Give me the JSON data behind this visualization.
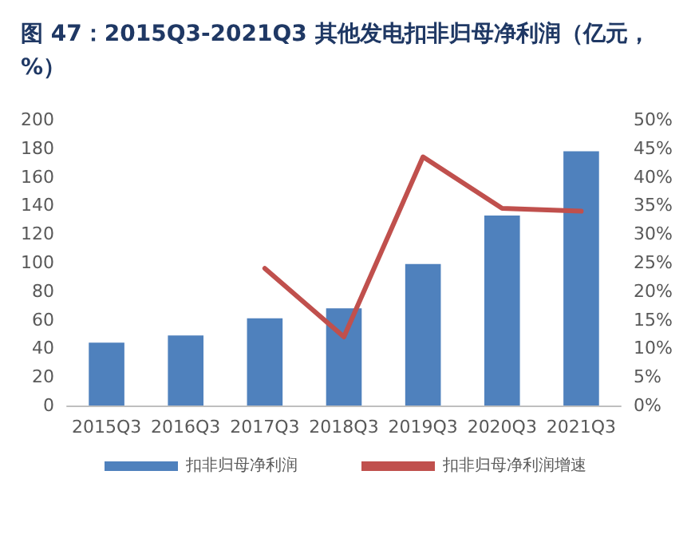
{
  "chart_data": {
    "type": "bar",
    "title": "图 47：2015Q3-2021Q3 其他发电扣非归母净利润（亿元，%）",
    "categories": [
      "2015Q3",
      "2016Q3",
      "2017Q3",
      "2018Q3",
      "2019Q3",
      "2020Q3",
      "2021Q3"
    ],
    "series": [
      {
        "name": "扣非归母净利润",
        "color": "#4f81bd",
        "values": [
          44,
          49,
          61,
          68,
          99,
          133,
          178
        ]
      },
      {
        "name": "扣非归母净利润增速",
        "type": "line",
        "axis": "y2",
        "color": "#c0504d",
        "values": [
          null,
          null,
          24,
          12,
          43.5,
          34.5,
          34
        ]
      }
    ],
    "ylim": [
      0,
      200
    ],
    "yticks": [
      0,
      20,
      40,
      60,
      80,
      100,
      120,
      140,
      160,
      180,
      200
    ],
    "y2lim": [
      0,
      50
    ],
    "y2ticks": [
      {
        "value": 0,
        "label": "0%"
      },
      {
        "value": 5,
        "label": "5%"
      },
      {
        "value": 10,
        "label": "10%"
      },
      {
        "value": 15,
        "label": "15%"
      },
      {
        "value": 20,
        "label": "20%"
      },
      {
        "value": 25,
        "label": "25%"
      },
      {
        "value": 30,
        "label": "30%"
      },
      {
        "value": 35,
        "label": "35%"
      },
      {
        "value": 40,
        "label": "40%"
      },
      {
        "value": 45,
        "label": "45%"
      },
      {
        "value": 50,
        "label": "50%"
      }
    ],
    "legend": "bottom",
    "marker": "none",
    "line_style": "solid",
    "grid": false
  }
}
